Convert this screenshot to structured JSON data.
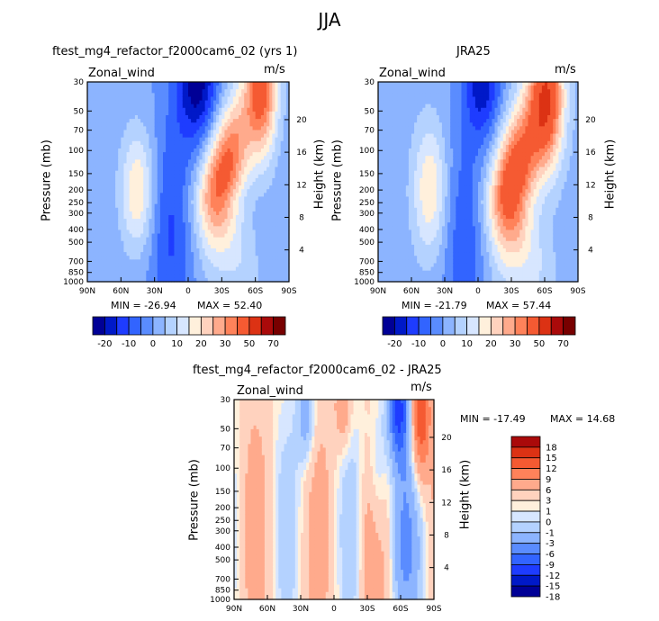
{
  "page": {
    "title": "JJA"
  },
  "colors": {
    "levels_top": [
      "#000096",
      "#0019c8",
      "#1e3cff",
      "#3264ff",
      "#5a8cff",
      "#8cb4ff",
      "#b4d2ff",
      "#d7e6ff",
      "#fff0dc",
      "#ffd2be",
      "#ffaa8c",
      "#ff825a",
      "#f55a32",
      "#dc3214",
      "#aa0a0a",
      "#780000"
    ],
    "levels_diff": [
      "#000096",
      "#0019c8",
      "#1e3cff",
      "#3264ff",
      "#5a8cff",
      "#8cb4ff",
      "#b4d2ff",
      "#d7e6ff",
      "#fff0dc",
      "#ffd2be",
      "#ffaa8c",
      "#ff825a",
      "#f55a32",
      "#dc3214",
      "#aa0a0a"
    ]
  },
  "chart_data": [
    {
      "type": "heatmap",
      "id": "model",
      "title": "ftest_mg4_refactor_f2000cam6_02 (yrs 1)",
      "variable": "Zonal_wind",
      "units": "m/s",
      "ylabel": "Pressure (mb)",
      "ylabel_right": "Height (km)",
      "x_ticks": [
        "90N",
        "60N",
        "30N",
        "0",
        "30S",
        "60S",
        "90S"
      ],
      "y_ticks": [
        "30",
        "50",
        "70",
        "100",
        "150",
        "200",
        "250",
        "300",
        "400",
        "500",
        "700",
        "850",
        "1000"
      ],
      "y_right_ticks": [
        "20",
        "16",
        "12",
        "8",
        "4"
      ],
      "stats": {
        "min_label": "MIN = -26.94",
        "max_label": "MAX = 52.40"
      },
      "colorbar_labels": [
        "-20",
        "-10",
        "0",
        "10",
        "20",
        "30",
        "50",
        "70"
      ],
      "features": [
        {
          "lat": -8,
          "pressure": 30,
          "value": -26.94
        },
        {
          "lat": 45,
          "pressure": 200,
          "value": 16
        },
        {
          "lat": -25,
          "pressure": 200,
          "value": 35
        },
        {
          "lat": -68,
          "pressure": 30,
          "value": 52.4
        }
      ]
    },
    {
      "type": "heatmap",
      "id": "obs",
      "title": "JRA25",
      "variable": "Zonal_wind",
      "units": "m/s",
      "ylabel": "Pressure (mb)",
      "ylabel_right": "Height (km)",
      "x_ticks": [
        "90N",
        "60N",
        "30N",
        "0",
        "30S",
        "60S",
        "90S"
      ],
      "y_ticks": [
        "30",
        "50",
        "70",
        "100",
        "150",
        "200",
        "250",
        "300",
        "400",
        "500",
        "700",
        "850",
        "1000"
      ],
      "y_right_ticks": [
        "20",
        "16",
        "12",
        "8",
        "4"
      ],
      "stats": {
        "min_label": "MIN = -21.79",
        "max_label": "MAX = 57.44"
      },
      "colorbar_labels": [
        "-20",
        "-10",
        "0",
        "10",
        "20",
        "30",
        "50",
        "70"
      ],
      "features": [
        {
          "lat": -5,
          "pressure": 30,
          "value": -21.79
        },
        {
          "lat": 42,
          "pressure": 200,
          "value": 16
        },
        {
          "lat": -28,
          "pressure": 200,
          "value": 40
        },
        {
          "lat": -63,
          "pressure": 40,
          "value": 57.44
        }
      ]
    },
    {
      "type": "heatmap",
      "id": "diff",
      "title": "ftest_mg4_refactor_f2000cam6_02 - JRA25",
      "variable": "Zonal_wind",
      "units": "m/s",
      "ylabel": "Pressure (mb)",
      "ylabel_right": "Height (km)",
      "x_ticks": [
        "90N",
        "60N",
        "30N",
        "0",
        "30S",
        "60S",
        "90S"
      ],
      "y_ticks": [
        "30",
        "50",
        "70",
        "100",
        "150",
        "200",
        "250",
        "300",
        "400",
        "500",
        "700",
        "850",
        "1000"
      ],
      "y_right_ticks": [
        "20",
        "16",
        "12",
        "8",
        "4"
      ],
      "stats": {
        "min_label": "MIN = -17.49",
        "max_label": "MAX =  14.68"
      },
      "colorbar_labels": [
        "18",
        "15",
        "12",
        "9",
        "6",
        "3",
        "1",
        "0",
        "-1",
        "-3",
        "-6",
        "-9",
        "-12",
        "-15",
        "-18"
      ]
    }
  ]
}
